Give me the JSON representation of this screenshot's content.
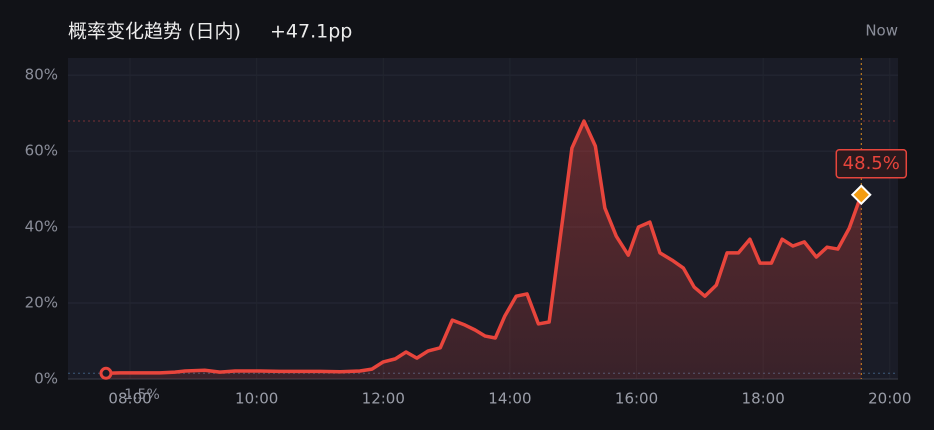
{
  "chart_data": {
    "type": "area",
    "title": "概率变化趋势 (日内)",
    "annotations": {
      "change": "+47.1pp",
      "now": "Now",
      "start": "1.5%",
      "end": "48.5%"
    },
    "color": "#e8453c",
    "marker_end_color": "#f39c12",
    "x": [
      7.62,
      7.84,
      8.16,
      8.47,
      8.71,
      8.87,
      9.18,
      9.42,
      9.66,
      10.05,
      10.37,
      10.69,
      11.0,
      11.32,
      11.63,
      11.82,
      12.0,
      12.19,
      12.36,
      12.53,
      12.71,
      12.9,
      13.09,
      13.29,
      13.45,
      13.61,
      13.77,
      13.92,
      14.1,
      14.27,
      14.45,
      14.62,
      14.79,
      14.98,
      15.17,
      15.35,
      15.5,
      15.68,
      15.87,
      16.03,
      16.21,
      16.37,
      16.56,
      16.74,
      16.91,
      17.08,
      17.26,
      17.43,
      17.61,
      17.79,
      17.95,
      18.13,
      18.3,
      18.47,
      18.65,
      18.84,
      19.01,
      19.18,
      19.36,
      19.55
    ],
    "values": [
      1.5,
      1.6,
      1.6,
      1.6,
      1.8,
      2.1,
      2.3,
      1.8,
      2.1,
      2.1,
      2.0,
      2.0,
      2.0,
      1.9,
      2.1,
      2.6,
      4.5,
      5.3,
      7.1,
      5.5,
      7.4,
      8.2,
      15.5,
      14.2,
      12.9,
      11.3,
      10.8,
      16.6,
      21.8,
      22.4,
      14.5,
      15.0,
      36.6,
      60.8,
      67.9,
      61.3,
      45.0,
      37.6,
      32.6,
      40.0,
      41.3,
      33.2,
      31.3,
      29.2,
      24.2,
      21.8,
      24.7,
      33.2,
      33.2,
      36.8,
      30.5,
      30.5,
      36.8,
      35.0,
      36.1,
      32.1,
      34.7,
      34.2,
      39.7,
      48.5
    ],
    "xlim": [
      7.02,
      20.13
    ],
    "xticks": [
      {
        "value": 8,
        "label": "08:00"
      },
      {
        "value": 10,
        "label": "10:00"
      },
      {
        "value": 12,
        "label": "12:00"
      },
      {
        "value": 14,
        "label": "14:00"
      },
      {
        "value": 16,
        "label": "16:00"
      },
      {
        "value": 18,
        "label": "18:00"
      },
      {
        "value": 20,
        "label": "20:00"
      }
    ],
    "ylim": [
      0,
      84.5
    ],
    "yticks": [
      {
        "value": 0,
        "label": "0%"
      },
      {
        "value": 20,
        "label": "20%"
      },
      {
        "value": 40,
        "label": "40%"
      },
      {
        "value": 60,
        "label": "60%"
      },
      {
        "value": 80,
        "label": "80%"
      }
    ],
    "grid": true
  }
}
